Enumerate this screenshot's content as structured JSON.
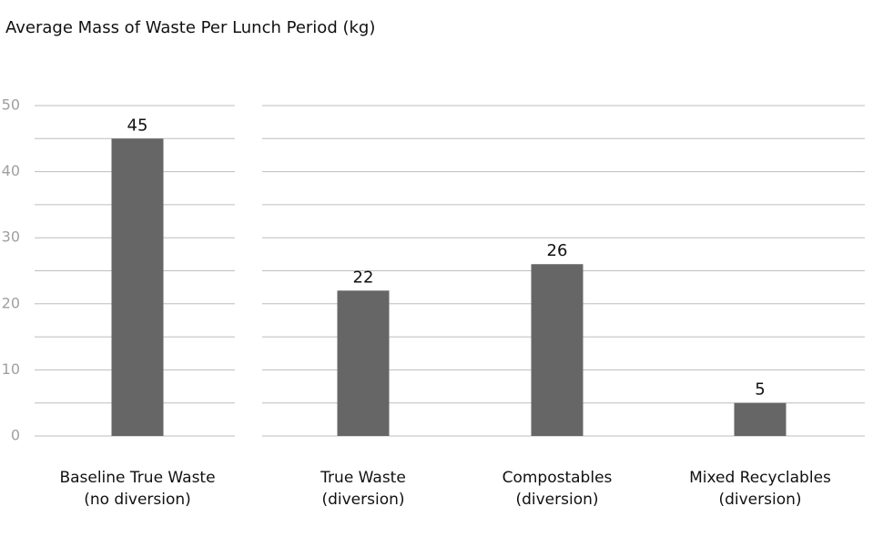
{
  "chart_data": {
    "type": "bar",
    "title": "Average Mass of Waste Per Lunch Period (kg)",
    "categories": [
      [
        "Baseline True Waste",
        "(no diversion)"
      ],
      [
        "True Waste",
        "(diversion)"
      ],
      [
        "Compostables",
        "(diversion)"
      ],
      [
        "Mixed Recyclables",
        "(diversion)"
      ]
    ],
    "values": [
      45,
      22,
      26,
      5
    ],
    "color": "#666666",
    "ylim": [
      0,
      50
    ],
    "yticks": [
      0,
      10,
      20,
      30,
      40,
      50
    ],
    "minor_yticks": [
      5,
      15,
      25,
      35,
      45
    ],
    "grid": true
  }
}
